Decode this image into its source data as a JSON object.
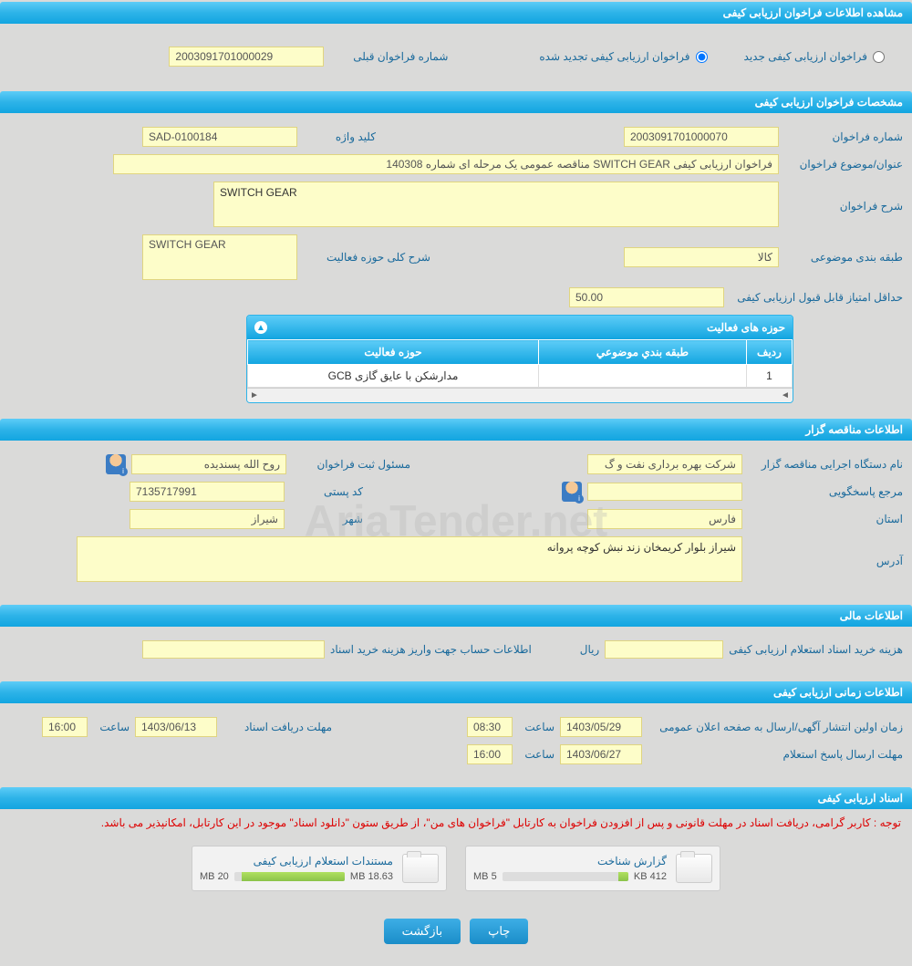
{
  "sections": {
    "view_info": "مشاهده اطلاعات فراخوان ارزیابی کیفی",
    "call_specs": "مشخصات فراخوان ارزیابی کیفی",
    "tender_info": "اطلاعات مناقصه گزار",
    "financial": "اطلاعات مالی",
    "timing": "اطلاعات زمانی ارزیابی کیفی",
    "documents": "اسناد ارزیابی کیفی"
  },
  "radio": {
    "new_call": "فراخوان ارزیابی کیفی جدید",
    "renewed_call": "فراخوان ارزیابی کیفی تجدید شده",
    "prev_call_label": "شماره فراخوان قبلی",
    "prev_call_value": "2003091701000029"
  },
  "specs": {
    "call_no_label": "شماره فراخوان",
    "call_no": "2003091701000070",
    "keyword_label": "کلید واژه",
    "keyword": "SAD-0100184",
    "title_label": "عنوان/موضوع فراخوان",
    "title": "فراخوان ارزیابی کیفی SWITCH GEAR مناقصه عمومی یک مرحله ای شماره 140308",
    "desc_label": "شرح فراخوان",
    "desc": "SWITCH GEAR",
    "category_label": "طبقه بندی موضوعی",
    "category": "کالا",
    "activity_desc_label": "شرح کلی حوزه فعالیت",
    "activity_desc": "SWITCH GEAR",
    "min_score_label": "حداقل امتیاز قابل قبول ارزیابی کیفی",
    "min_score": "50.00"
  },
  "activity_table": {
    "title": "حوزه های فعالیت",
    "cols": {
      "row": "ردیف",
      "category": "طبقه بندي موضوعي",
      "activity": "حوزه فعاليت"
    },
    "rows": [
      {
        "n": "1",
        "cat": "",
        "act": "مدارشکن با عایق گازی GCB"
      }
    ]
  },
  "tender": {
    "org_label": "نام دستگاه اجرایی مناقصه گزار",
    "org": "شرکت بهره برداری نفت و گ",
    "registrar_label": "مسئول ثبت فراخوان",
    "registrar": "روح الله پسندیده",
    "responder_label": "مرجع پاسخگویی",
    "responder": "",
    "postal_label": "کد پستی",
    "postal": "7135717991",
    "province_label": "استان",
    "province": "فارس",
    "city_label": "شهر",
    "city": "شیراز",
    "address_label": "آدرس",
    "address": "شیراز بلوار کریمخان زند نبش کوچه پروانه"
  },
  "financial": {
    "purchase_label": "هزینه خرید اسناد استعلام ارزیابی کیفی",
    "purchase": "",
    "rial": "ریال",
    "account_label": "اطلاعات حساب جهت واریز هزینه خرید اسناد",
    "account": ""
  },
  "timing": {
    "first_pub_label": "زمان اولین انتشار آگهی/ارسال به صفحه اعلان عمومی",
    "first_pub_date": "1403/05/29",
    "first_pub_time": "08:30",
    "deadline_receive_label": "مهلت دریافت اسناد",
    "deadline_receive_date": "1403/06/13",
    "deadline_receive_time": "16:00",
    "deadline_response_label": "مهلت ارسال پاسخ استعلام",
    "deadline_response_date": "1403/06/27",
    "deadline_response_time": "16:00",
    "time_label": "ساعت"
  },
  "docs": {
    "note": "توجه : کاربر گرامی، دریافت اسناد در مهلت قانونی و پس از افزودن فراخوان به کارتابل \"فراخوان های من\"، از طریق ستون \"دانلود اسناد\" موجود در این کارتابل، امکانپذیر می باشد.",
    "file1_name": "گزارش شناخت",
    "file1_used": "412 KB",
    "file1_total": "5 MB",
    "file1_pct": 8,
    "file2_name": "مستندات استعلام ارزیابی کیفی",
    "file2_used": "18.63 MB",
    "file2_total": "20 MB",
    "file2_pct": 93
  },
  "buttons": {
    "print": "چاپ",
    "back": "بازگشت"
  },
  "watermark": "AriaTender.net"
}
